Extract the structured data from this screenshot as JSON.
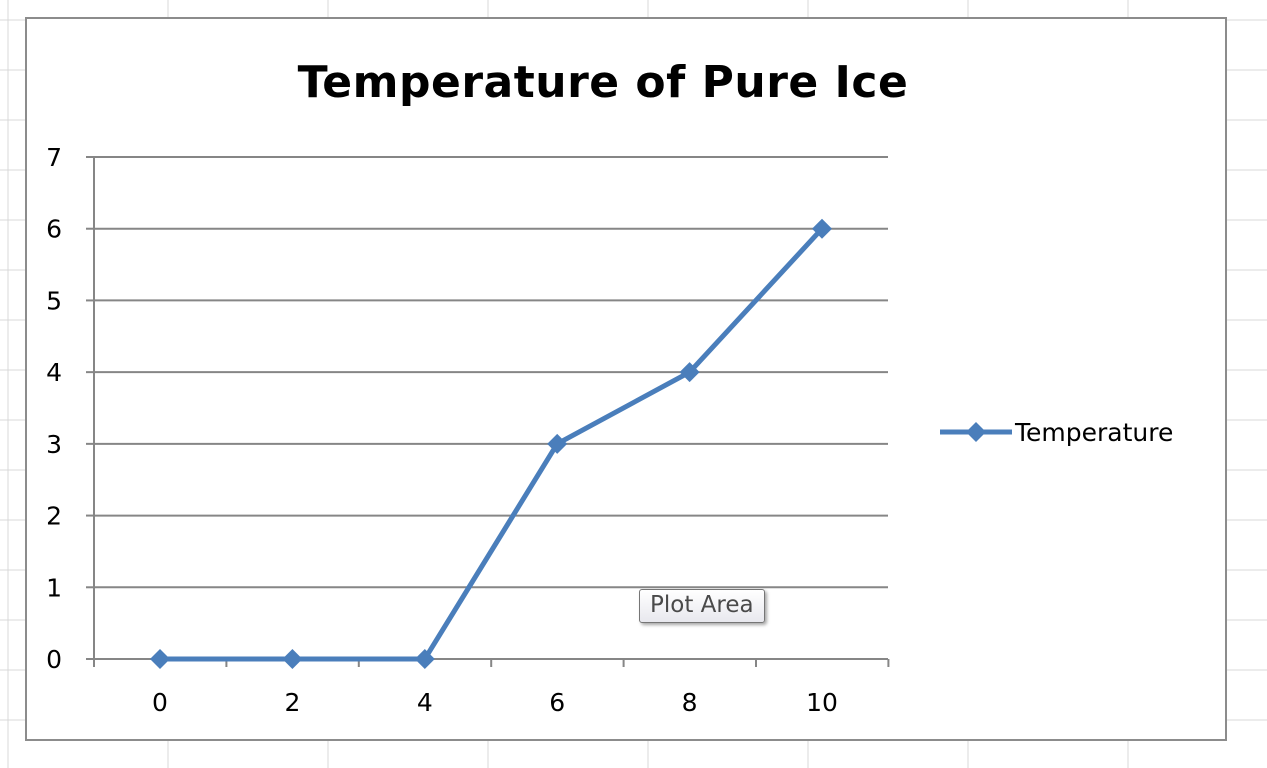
{
  "chart_data": {
    "type": "line",
    "title": "Temperature of Pure Ice",
    "xlabel": "",
    "ylabel": "",
    "x": [
      0,
      2,
      4,
      6,
      8,
      10
    ],
    "series": [
      {
        "name": "Temperature",
        "values": [
          0,
          0,
          0,
          3,
          4,
          6
        ]
      }
    ],
    "x_tick_labels": [
      "0",
      "2",
      "4",
      "6",
      "8",
      "10"
    ],
    "y_tick_labels": [
      "0",
      "1",
      "2",
      "3",
      "4",
      "5",
      "6",
      "7"
    ],
    "ylim": [
      0,
      7
    ],
    "grid": "horizontal",
    "legend_position": "right",
    "line_color": "#4A7EBB",
    "marker": "diamond"
  },
  "tooltip": {
    "label": "Plot Area"
  }
}
